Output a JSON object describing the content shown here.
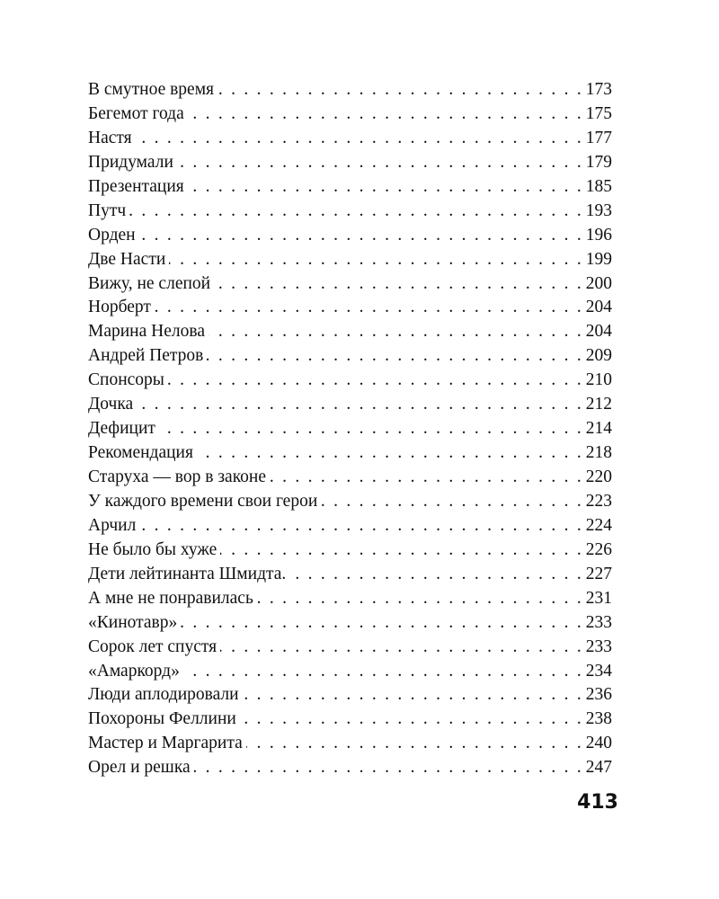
{
  "toc": [
    {
      "title": "В смутное время",
      "page": "173"
    },
    {
      "title": "Бегемот года",
      "page": "175"
    },
    {
      "title": "Настя",
      "page": "177"
    },
    {
      "title": "Придумали",
      "page": "179"
    },
    {
      "title": "Презентация",
      "page": "185"
    },
    {
      "title": "Путч",
      "page": "193"
    },
    {
      "title": "Орден",
      "page": "196"
    },
    {
      "title": "Две Насти",
      "page": "199"
    },
    {
      "title": "Вижу, не слепой",
      "page": "200"
    },
    {
      "title": "Норберт",
      "page": "204"
    },
    {
      "title": "Марина Нелова",
      "page": "204"
    },
    {
      "title": "Андрей Петров",
      "page": "209"
    },
    {
      "title": "Спонсоры",
      "page": "210"
    },
    {
      "title": "Дочка",
      "page": "212"
    },
    {
      "title": "Дефицит",
      "page": "214"
    },
    {
      "title": "Рекомендация",
      "page": "218"
    },
    {
      "title": "Старуха — вор в законе",
      "page": "220"
    },
    {
      "title": "У каждого времени свои герои",
      "page": "223"
    },
    {
      "title": "Арчил",
      "page": "224"
    },
    {
      "title": "Не было бы хуже",
      "page": "226"
    },
    {
      "title": "Дети лейтинанта Шмидта.",
      "page": "227"
    },
    {
      "title": "А мне не понравилась",
      "page": "231"
    },
    {
      "title": "«Кинотавр»",
      "page": "233"
    },
    {
      "title": "Сорок лет спустя",
      "page": "233"
    },
    {
      "title": "«Амаркорд»",
      "page": "234"
    },
    {
      "title": "Люди аплодировали",
      "page": "236"
    },
    {
      "title": "Похороны Феллини",
      "page": "238"
    },
    {
      "title": "Мастер и Маргарита",
      "page": "240"
    },
    {
      "title": "Орел и решка",
      "page": "247"
    }
  ],
  "folio": "413"
}
